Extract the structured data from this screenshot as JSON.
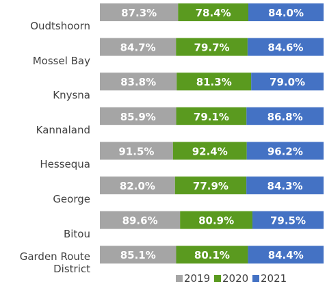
{
  "chart_data": {
    "type": "bar",
    "orientation": "horizontal",
    "stacking": "percent",
    "categories": [
      "Oudtshoorn",
      "Mossel Bay",
      "Knysna",
      "Kannaland",
      "Hessequa",
      "George",
      "Bitou",
      "Garden Route District"
    ],
    "series": [
      {
        "name": "2019",
        "color": "#a5a5a5",
        "values": [
          87.3,
          84.7,
          83.8,
          85.9,
          91.5,
          82.0,
          89.6,
          85.1
        ],
        "value_labels": [
          "87.3%",
          "84.7%",
          "83.8%",
          "85.9%",
          "91.5%",
          "82.0%",
          "89.6%",
          "85.1%"
        ]
      },
      {
        "name": "2020",
        "color": "#5a9a1f",
        "values": [
          78.4,
          79.7,
          81.3,
          79.1,
          92.4,
          77.9,
          80.9,
          80.1
        ],
        "value_labels": [
          "78.4%",
          "79.7%",
          "81.3%",
          "79.1%",
          "92.4%",
          "77.9%",
          "80.9%",
          "80.1%"
        ]
      },
      {
        "name": "2021",
        "color": "#4472c4",
        "values": [
          84.0,
          84.6,
          79.0,
          86.8,
          96.2,
          84.3,
          79.5,
          84.4
        ],
        "value_labels": [
          "84.0%",
          "84.6%",
          "79.0%",
          "86.8%",
          "96.2%",
          "84.3%",
          "79.5%",
          "84.4%"
        ]
      }
    ],
    "legend": "bottom"
  }
}
